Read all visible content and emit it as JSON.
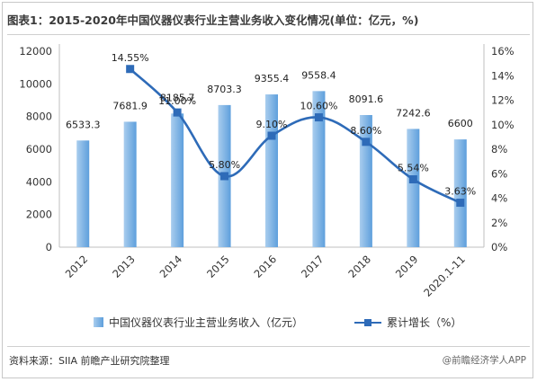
{
  "header": {
    "title": "图表1：2015-2020年中国仪器仪表行业主营业务收入变化情况(单位：亿元，%)"
  },
  "footer": {
    "source": "资料来源：SIIA 前瞻产业研究院整理",
    "watermark": "@前瞻经济学人APP"
  },
  "chart_data": {
    "type": "bar",
    "categories": [
      "2012",
      "2013",
      "2014",
      "2015",
      "2016",
      "2017",
      "2018",
      "2019",
      "2020.1-11"
    ],
    "series": [
      {
        "name": "中国仪器仪表行业主营业务收入（亿元）",
        "type": "bar",
        "axis": "left",
        "values": [
          6533.3,
          7681.9,
          8185.7,
          8703.3,
          9355.4,
          9558.4,
          8091.6,
          7242.6,
          6600
        ],
        "labels": [
          "6533.3",
          "7681.9",
          "8185.7",
          "8703.3",
          "9355.4",
          "9558.4",
          "8091.6",
          "7242.6",
          "6600"
        ]
      },
      {
        "name": "累计增长（%）",
        "type": "line",
        "axis": "right",
        "values": [
          null,
          14.55,
          11.0,
          5.8,
          9.1,
          10.6,
          8.6,
          5.54,
          3.63
        ],
        "labels": [
          "",
          "14.55%",
          "11.00%",
          "5.80%",
          "9.10%",
          "10.60%",
          "8.60%",
          "5.54%",
          "3.63%"
        ]
      }
    ],
    "y_left": {
      "range": [
        0,
        12000
      ],
      "ticks": [
        0,
        2000,
        4000,
        6000,
        8000,
        10000,
        12000
      ],
      "tick_labels": [
        "0",
        "2000",
        "4000",
        "6000",
        "8000",
        "10000",
        "12000"
      ]
    },
    "y_right": {
      "range": [
        0,
        16
      ],
      "ticks": [
        0,
        2,
        4,
        6,
        8,
        10,
        12,
        14,
        16
      ],
      "tick_labels": [
        "0%",
        "2%",
        "4%",
        "6%",
        "8%",
        "10%",
        "12%",
        "14%",
        "16%"
      ]
    },
    "legend_position": "bottom",
    "grid": false,
    "colors": {
      "bar_light": "#a9cdee",
      "bar_dark": "#5e9fdc",
      "line": "#2e6bb8",
      "axis": "#bfbfbf"
    }
  }
}
